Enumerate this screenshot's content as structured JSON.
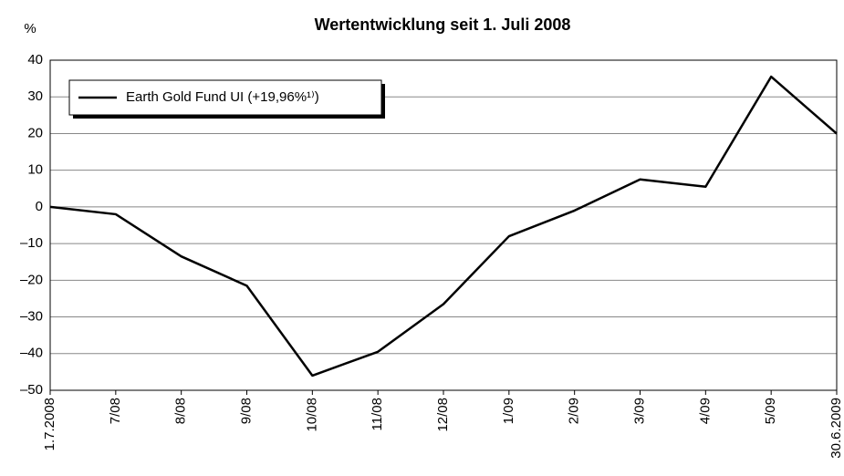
{
  "chart_data": {
    "type": "line",
    "title": "Wertentwicklung seit 1. Juli 2008",
    "y_label": "%",
    "categories": [
      "1.7.2008",
      "7/08",
      "8/08",
      "9/08",
      "10/08",
      "11/08",
      "12/08",
      "1/09",
      "2/09",
      "3/09",
      "4/09",
      "5/09",
      "30.6.2009"
    ],
    "series": [
      {
        "name": "Earth Gold Fund UI (+19,96%¹⁾)",
        "color": "#000000",
        "values": [
          0,
          -2,
          -13.5,
          -21.5,
          -46,
          -39.5,
          -26.5,
          -8,
          -1,
          7.5,
          5.5,
          35.5,
          19.96
        ]
      }
    ],
    "ylim": [
      -50,
      40
    ],
    "yticks": [
      {
        "value": -50,
        "label": "–50"
      },
      {
        "value": -40,
        "label": "–40"
      },
      {
        "value": -30,
        "label": "–30"
      },
      {
        "value": -20,
        "label": "–20"
      },
      {
        "value": -10,
        "label": "–10"
      },
      0,
      10,
      20,
      30,
      40
    ],
    "grid": true,
    "legend": "upper left"
  }
}
